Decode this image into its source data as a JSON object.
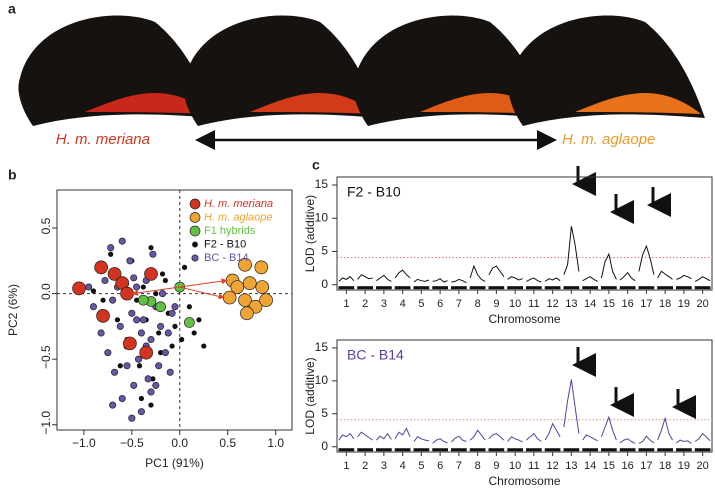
{
  "figure": {
    "panel_labels": [
      "a",
      "b",
      "c"
    ],
    "wing_labels": [
      "H. m. meriana",
      "H. m. aglaope"
    ]
  },
  "chart_data": [
    {
      "type": "scatter",
      "xlabel": "PC1 (91%)",
      "ylabel": "PC2 (6%)",
      "xlim": [
        -1.28,
        1.17
      ],
      "ylim": [
        -1.04,
        0.79
      ],
      "xticks": [
        {
          "value": -1.0,
          "label": "−1.0"
        },
        {
          "value": -0.5,
          "label": "−0.5"
        },
        {
          "value": 0,
          "label": "0.0"
        },
        {
          "value": 0.5,
          "label": "0.5"
        },
        {
          "value": 1.0,
          "label": "1.0"
        }
      ],
      "yticks": [
        {
          "value": -1.0,
          "label": "−1.0"
        },
        {
          "value": -0.5,
          "label": "−0.5"
        },
        {
          "value": 0,
          "label": "0.0"
        },
        {
          "value": 0.5,
          "label": "0.5"
        }
      ],
      "series": [
        {
          "name": "H. m. meriana",
          "color": "#d2341f",
          "size": 6.5,
          "x": [
            -1.05,
            -0.82,
            -0.68,
            -0.6,
            -0.55,
            -0.3,
            -0.8,
            -0.52,
            -0.35
          ],
          "y": [
            0.04,
            0.2,
            0.15,
            0.08,
            0.0,
            0.15,
            -0.17,
            -0.38,
            -0.45
          ]
        },
        {
          "name": "H. m. aglaope",
          "color": "#f0a433",
          "size": 6.5,
          "x": [
            0.55,
            0.68,
            0.85,
            0.6,
            0.73,
            0.86,
            0.52,
            0.68,
            0.79,
            0.7,
            0.9
          ],
          "y": [
            0.1,
            0.22,
            0.2,
            0.05,
            0.08,
            0.05,
            -0.03,
            -0.05,
            -0.1,
            -0.15,
            -0.05
          ]
        },
        {
          "name": "F1 hybrids",
          "color": "#62c144",
          "size": 5,
          "x": [
            0.0,
            -0.3,
            -0.38,
            -0.2,
            0.1
          ],
          "y": [
            0.05,
            -0.06,
            -0.05,
            -0.1,
            -0.22
          ]
        },
        {
          "name": "F2 - B10",
          "color": "#111111",
          "size": 2.6,
          "x": [
            -0.9,
            -0.8,
            -0.72,
            -0.65,
            -0.6,
            -0.55,
            -0.5,
            -0.45,
            -0.42,
            -0.38,
            -0.35,
            -0.3,
            -0.28,
            -0.25,
            -0.22,
            -0.2,
            -0.15,
            -0.12,
            -0.1,
            -0.05,
            0.02,
            0.05,
            0.1,
            0.15,
            0.2,
            0.25,
            -0.4,
            -0.5,
            -0.3,
            -0.18,
            -0.08,
            -0.62
          ],
          "y": [
            0.02,
            -0.05,
            0.3,
            -0.2,
            0.1,
            -0.35,
            0.25,
            -0.05,
            -0.55,
            0.05,
            -0.2,
            0.35,
            -0.65,
            0.0,
            -0.3,
            -0.45,
            0.1,
            -0.15,
            -0.6,
            -0.25,
            -0.35,
            0.2,
            -0.1,
            -0.3,
            -0.2,
            -0.4,
            -0.8,
            -0.15,
            -0.85,
            0.15,
            -0.4,
            -0.55
          ]
        },
        {
          "name": "BC - B14",
          "color": "#6b53a8",
          "size": 3.2,
          "x": [
            -0.95,
            -0.9,
            -0.85,
            -0.82,
            -0.78,
            -0.75,
            -0.72,
            -0.7,
            -0.68,
            -0.65,
            -0.62,
            -0.6,
            -0.58,
            -0.55,
            -0.52,
            -0.5,
            -0.48,
            -0.45,
            -0.43,
            -0.4,
            -0.38,
            -0.35,
            -0.33,
            -0.3,
            -0.28,
            -0.25,
            -0.22,
            -0.2,
            -0.18,
            -0.15,
            -0.12,
            -0.1,
            -0.08,
            -0.05,
            -0.6,
            -0.5,
            -0.4,
            -0.3,
            -0.7,
            -0.55,
            -0.45,
            -0.35,
            -0.25,
            -0.65,
            -0.48
          ],
          "y": [
            0.05,
            -0.1,
            0.2,
            -0.3,
            0.1,
            -0.45,
            0.35,
            -0.05,
            -0.6,
            0.15,
            -0.25,
            -0.8,
            0.0,
            -0.4,
            0.25,
            -0.15,
            -0.7,
            0.05,
            -0.5,
            -0.9,
            -0.2,
            0.1,
            -0.65,
            -0.35,
            0.3,
            -0.1,
            -0.55,
            -0.25,
            0.0,
            -0.45,
            -0.3,
            -0.6,
            -0.15,
            -0.1,
            0.4,
            -0.95,
            -0.3,
            -0.75,
            -0.85,
            -0.55,
            -0.2,
            -0.4,
            -0.7,
            0.05,
            0.12
          ]
        }
      ]
    },
    {
      "type": "lod",
      "title": "F2 - B10",
      "ylabel": "LOD (additive)",
      "xlabel": "Chromosome",
      "categories": [
        1,
        2,
        3,
        4,
        5,
        6,
        7,
        8,
        9,
        10,
        11,
        12,
        13,
        14,
        15,
        16,
        17,
        18,
        19,
        20
      ],
      "ylim": [
        -0.8,
        16.2
      ],
      "yticks": [
        0,
        5,
        10,
        15
      ],
      "threshold": 4.1,
      "series": [
        {
          "name": "F2 - B10",
          "color": "#111111",
          "values": [
            [
              0.5,
              1,
              0.8,
              1.2,
              0.6
            ],
            [
              0.8,
              1.5,
              1.2,
              0.9,
              1
            ],
            [
              0.6,
              1,
              1.4,
              0.8,
              0.5
            ],
            [
              1,
              1.8,
              2.2,
              1.5,
              1
            ],
            [
              0.4,
              0.8,
              0.6,
              0.5,
              0.7
            ],
            [
              0.5,
              0.6,
              0.9,
              0.4,
              0.6
            ],
            [
              0.4,
              0.5,
              0.8,
              0.6,
              0.3
            ],
            [
              1,
              2.8,
              1.5,
              0.8,
              0.5
            ],
            [
              1.5,
              2.5,
              2.8,
              2,
              1.2
            ],
            [
              0.8,
              1.2,
              1,
              0.7,
              0.9
            ],
            [
              0.5,
              0.8,
              1,
              0.6,
              0.4
            ],
            [
              0.5,
              0.9,
              0.7,
              1,
              0.6
            ],
            [
              1.5,
              3,
              8.8,
              6,
              2
            ],
            [
              0.6,
              0.9,
              1.2,
              0.8,
              0.5
            ],
            [
              1,
              3.5,
              4.6,
              2,
              0.8
            ],
            [
              0.7,
              1.2,
              1.8,
              1,
              0.6
            ],
            [
              2,
              4.5,
              5.8,
              4,
              1.5
            ],
            [
              1,
              2,
              1.6,
              1.2,
              0.8
            ],
            [
              0.8,
              1,
              1.4,
              1.2,
              0.9
            ],
            [
              0.5,
              0.8,
              1.2,
              0.9,
              0.6
            ]
          ]
        }
      ]
    },
    {
      "type": "lod",
      "title": "BC - B14",
      "ylabel": "LOD (additive)",
      "xlabel": "Chromosome",
      "categories": [
        1,
        2,
        3,
        4,
        5,
        6,
        7,
        8,
        9,
        10,
        11,
        12,
        13,
        14,
        15,
        16,
        17,
        18,
        19,
        20
      ],
      "ylim": [
        -0.8,
        16.2
      ],
      "yticks": [
        0,
        5,
        10,
        15
      ],
      "threshold": 4.1,
      "series": [
        {
          "name": "BC - B14",
          "color": "#5b3fa0",
          "values": [
            [
              1,
              1.8,
              1.5,
              2,
              1.2
            ],
            [
              1.5,
              2.2,
              1.8,
              1.4,
              1
            ],
            [
              1,
              1.6,
              1.2,
              2,
              1.1
            ],
            [
              1.2,
              2.2,
              1.8,
              2.8,
              1.5
            ],
            [
              0.8,
              1.5,
              1.2,
              1,
              0.9
            ],
            [
              0.5,
              1,
              1.2,
              0.8,
              0.6
            ],
            [
              0.7,
              1.3,
              1.6,
              1,
              0.8
            ],
            [
              1,
              1.5,
              2.5,
              1.8,
              1
            ],
            [
              1.2,
              1.8,
              2,
              1.5,
              1
            ],
            [
              0.8,
              1.5,
              1.2,
              1,
              0.7
            ],
            [
              1,
              1.5,
              2,
              1.2,
              0.8
            ],
            [
              1,
              2,
              3.5,
              2.5,
              1.5
            ],
            [
              3,
              7,
              10.2,
              6,
              2
            ],
            [
              1,
              1.8,
              1.5,
              1.2,
              0.9
            ],
            [
              1.5,
              3,
              4.5,
              2.5,
              1
            ],
            [
              0.6,
              1,
              1.2,
              0.8,
              0.5
            ],
            [
              0.5,
              0.8,
              1.6,
              1,
              0.6
            ],
            [
              1,
              2.5,
              4.3,
              2,
              1
            ],
            [
              0.6,
              1,
              0.8,
              0.9,
              0.5
            ],
            [
              0.8,
              1.2,
              2,
              1.5,
              0.9
            ]
          ]
        }
      ]
    }
  ]
}
